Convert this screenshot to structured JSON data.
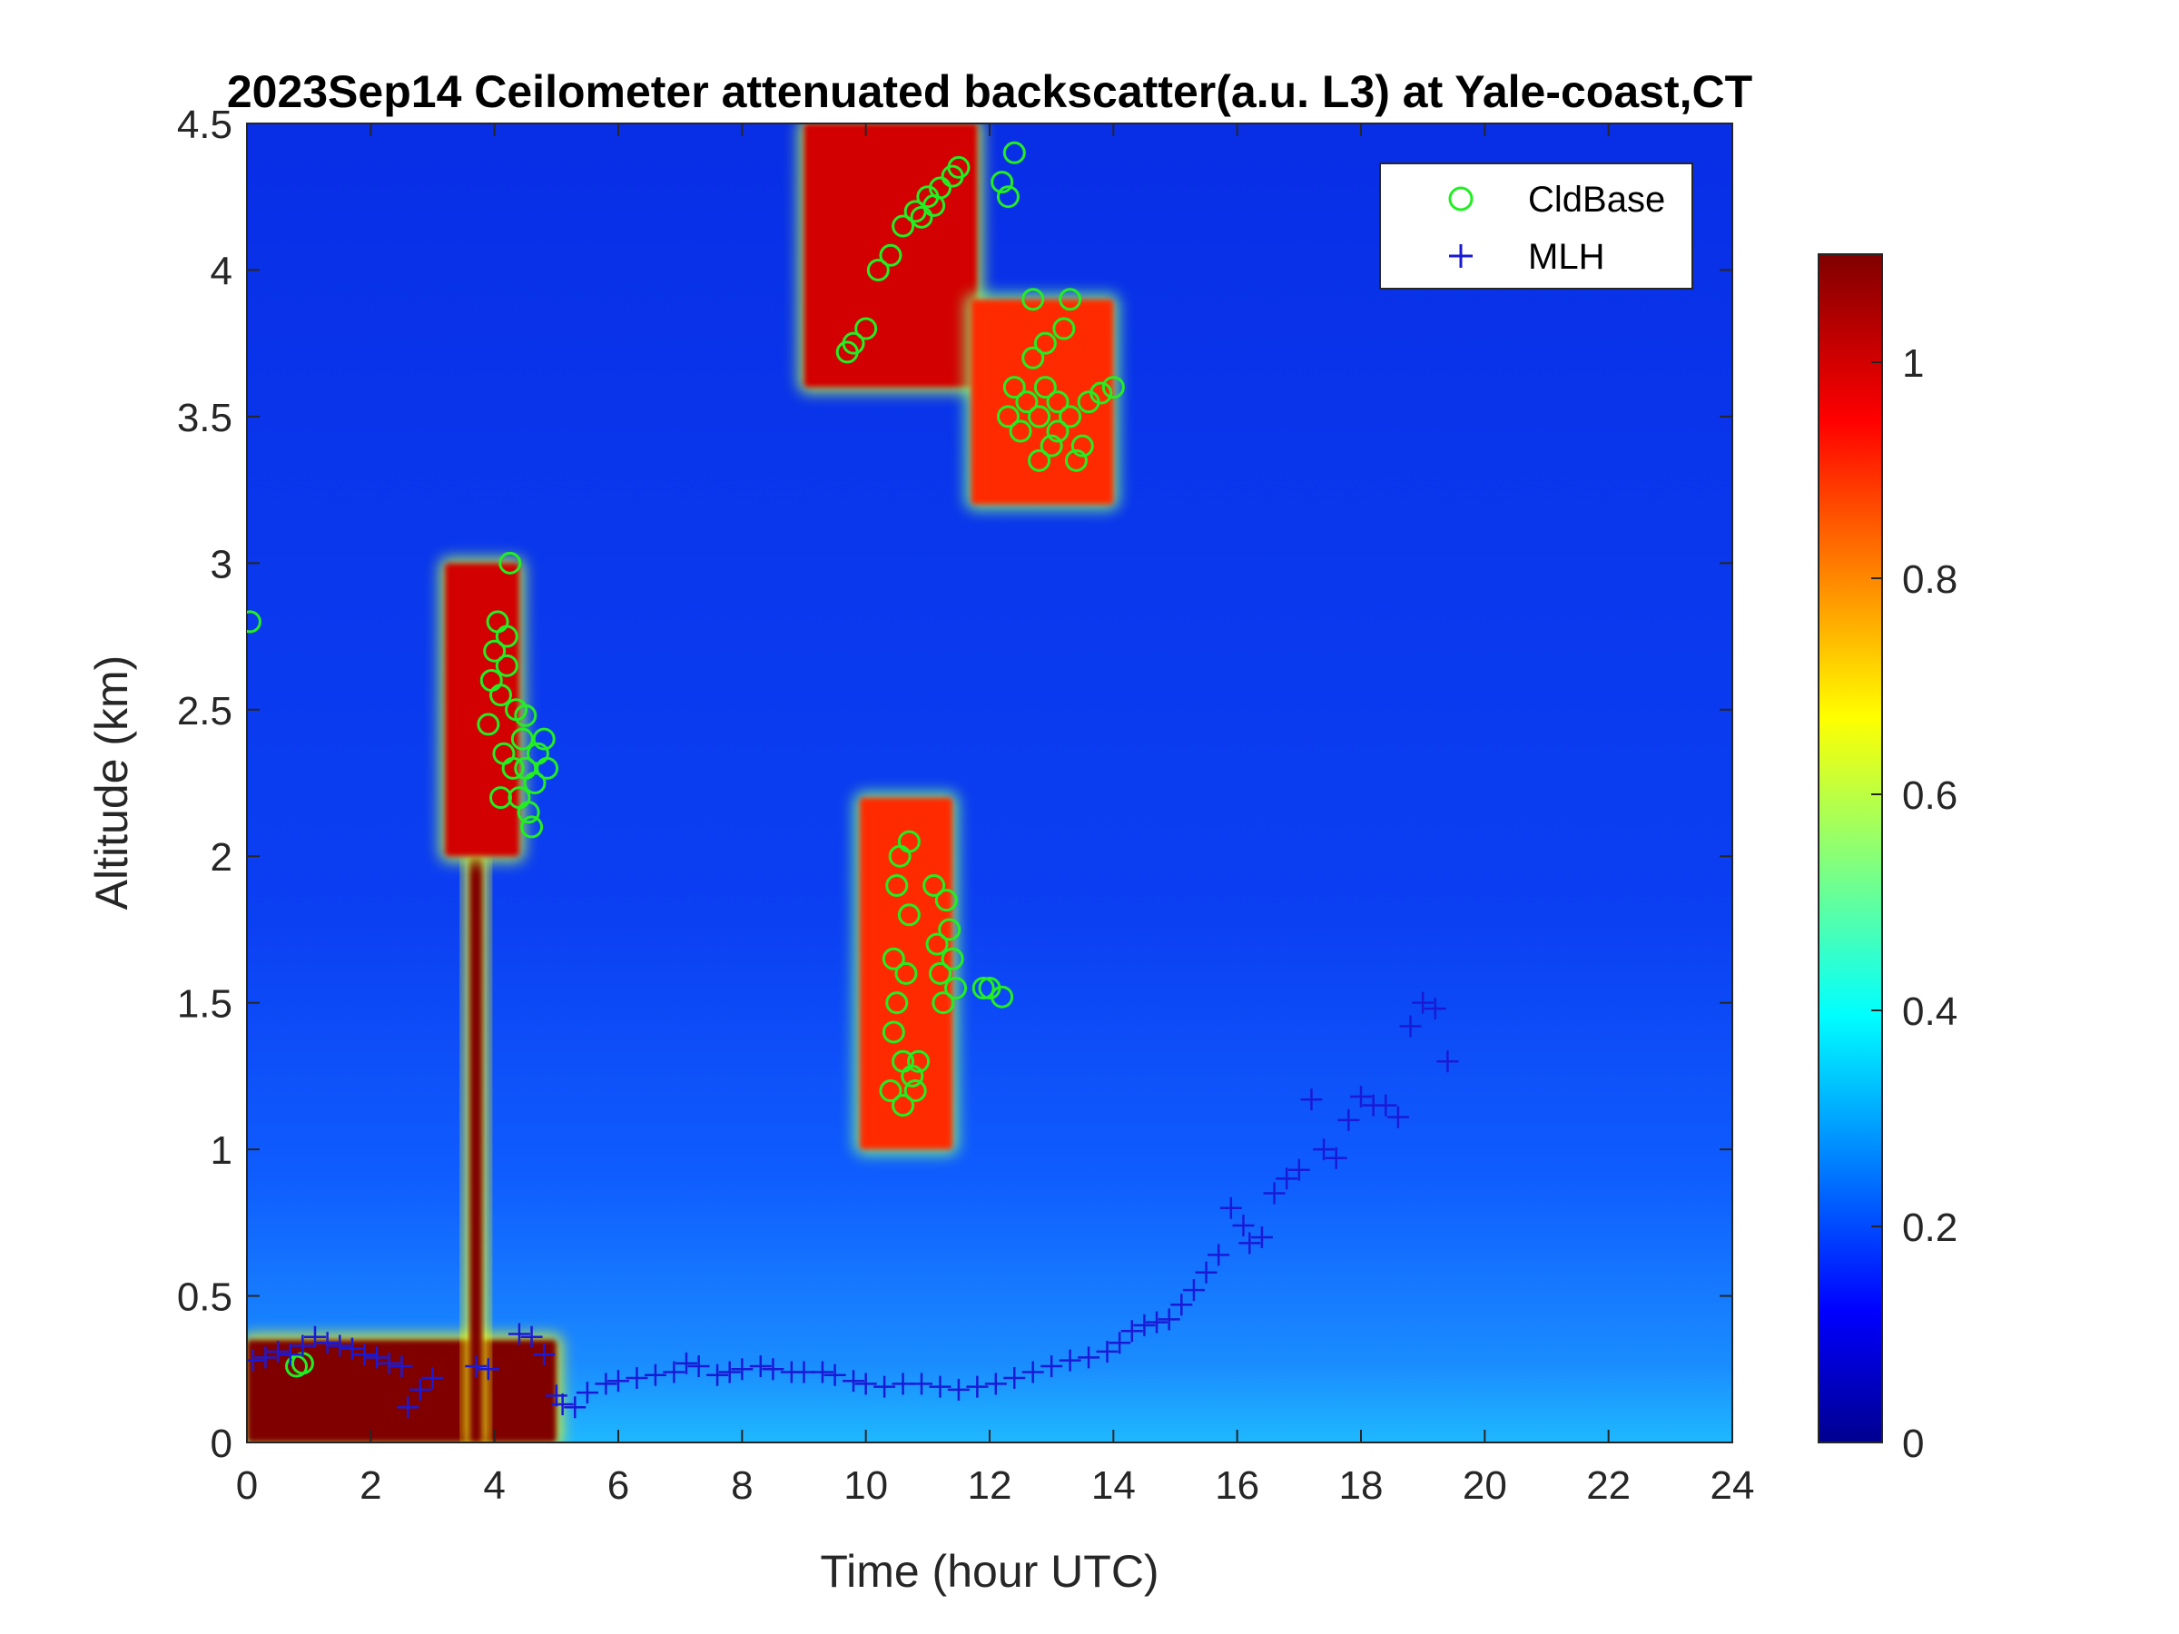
{
  "chart_data": {
    "type": "heatmap",
    "title": "2023Sep14 Ceilometer attenuated backscatter(a.u. L3) at Yale-coast,CT",
    "xlabel": "Time (hour UTC)",
    "ylabel": "Altitude (km)",
    "xlim": [
      0,
      24
    ],
    "ylim": [
      0,
      4.5
    ],
    "xticks": [
      "0",
      "2",
      "4",
      "6",
      "8",
      "10",
      "12",
      "14",
      "16",
      "18",
      "20",
      "22",
      "24"
    ],
    "yticks": [
      "0",
      "0.5",
      "1",
      "1.5",
      "2",
      "2.5",
      "3",
      "3.5",
      "4",
      "4.5"
    ],
    "colorbar": {
      "range": [
        0,
        1.1
      ],
      "ticks": [
        "0",
        "0.2",
        "0.4",
        "0.6",
        "0.8",
        "1"
      ],
      "colormap": "jet"
    },
    "legend": {
      "position": "top-right",
      "entries": [
        {
          "label": "CldBase",
          "marker": "circle",
          "color": "#22ee22"
        },
        {
          "label": "MLH",
          "marker": "plus",
          "color": "#1a1ad6"
        }
      ]
    },
    "features": [
      {
        "name": "surface aerosol layer",
        "t": [
          0,
          5
        ],
        "z": [
          0,
          0.35
        ],
        "value": 1.1
      },
      {
        "name": "plume column",
        "t": [
          3.6,
          3.8
        ],
        "z": [
          0,
          2.0
        ],
        "value": 1.1
      },
      {
        "name": "mid-level cloud",
        "t": [
          3.2,
          4.4
        ],
        "z": [
          2.0,
          3.0
        ],
        "value": 1.0
      },
      {
        "name": "high cloud arc",
        "t": [
          9.0,
          11.8
        ],
        "z": [
          3.6,
          4.5
        ],
        "value": 1.0
      },
      {
        "name": "high cloud",
        "t": [
          11.7,
          14.0
        ],
        "z": [
          3.2,
          3.9
        ],
        "value": 0.9
      },
      {
        "name": "low cloud",
        "t": [
          9.9,
          11.4
        ],
        "z": [
          1.0,
          2.2
        ],
        "value": 0.9
      }
    ],
    "series": [
      {
        "name": "CldBase",
        "points": [
          [
            0.05,
            2.8
          ],
          [
            0.8,
            0.26
          ],
          [
            0.9,
            0.27
          ],
          [
            3.9,
            2.45
          ],
          [
            3.95,
            2.6
          ],
          [
            4.0,
            2.7
          ],
          [
            4.05,
            2.8
          ],
          [
            4.1,
            2.55
          ],
          [
            4.15,
            2.35
          ],
          [
            4.2,
            2.75
          ],
          [
            4.25,
            3.0
          ],
          [
            4.3,
            2.3
          ],
          [
            4.35,
            2.5
          ],
          [
            4.4,
            2.2
          ],
          [
            4.45,
            2.4
          ],
          [
            4.5,
            2.3
          ],
          [
            4.55,
            2.15
          ],
          [
            4.6,
            2.1
          ],
          [
            4.65,
            2.25
          ],
          [
            4.7,
            2.35
          ],
          [
            4.8,
            2.4
          ],
          [
            4.85,
            2.3
          ],
          [
            4.2,
            2.65
          ],
          [
            4.1,
            2.2
          ],
          [
            4.5,
            2.48
          ],
          [
            9.7,
            3.72
          ],
          [
            9.8,
            3.75
          ],
          [
            10.0,
            3.8
          ],
          [
            10.2,
            4.0
          ],
          [
            10.4,
            4.05
          ],
          [
            10.6,
            4.15
          ],
          [
            10.8,
            4.2
          ],
          [
            11.0,
            4.25
          ],
          [
            11.2,
            4.28
          ],
          [
            11.4,
            4.32
          ],
          [
            11.5,
            4.35
          ],
          [
            10.9,
            4.18
          ],
          [
            11.1,
            4.22
          ],
          [
            12.2,
            4.3
          ],
          [
            12.3,
            4.25
          ],
          [
            12.4,
            4.4
          ],
          [
            12.3,
            3.5
          ],
          [
            12.4,
            3.6
          ],
          [
            12.5,
            3.45
          ],
          [
            12.6,
            3.55
          ],
          [
            12.7,
            3.7
          ],
          [
            12.8,
            3.5
          ],
          [
            12.9,
            3.6
          ],
          [
            13.0,
            3.4
          ],
          [
            13.1,
            3.55
          ],
          [
            13.2,
            3.8
          ],
          [
            13.3,
            3.5
          ],
          [
            13.4,
            3.35
          ],
          [
            13.5,
            3.4
          ],
          [
            13.6,
            3.55
          ],
          [
            13.8,
            3.58
          ],
          [
            14.0,
            3.6
          ],
          [
            12.7,
            3.9
          ],
          [
            13.3,
            3.9
          ],
          [
            12.9,
            3.75
          ],
          [
            12.8,
            3.35
          ],
          [
            13.1,
            3.45
          ],
          [
            10.4,
            1.2
          ],
          [
            10.45,
            1.4
          ],
          [
            10.5,
            1.9
          ],
          [
            10.55,
            2.0
          ],
          [
            10.6,
            1.3
          ],
          [
            10.65,
            1.6
          ],
          [
            10.7,
            1.8
          ],
          [
            10.75,
            1.25
          ],
          [
            10.8,
            1.2
          ],
          [
            10.85,
            1.3
          ],
          [
            10.5,
            1.5
          ],
          [
            10.6,
            1.15
          ],
          [
            10.7,
            2.05
          ],
          [
            10.45,
            1.65
          ],
          [
            11.1,
            1.9
          ],
          [
            11.15,
            1.7
          ],
          [
            11.2,
            1.6
          ],
          [
            11.25,
            1.5
          ],
          [
            11.3,
            1.85
          ],
          [
            11.35,
            1.75
          ],
          [
            11.4,
            1.65
          ],
          [
            11.45,
            1.55
          ],
          [
            11.9,
            1.55
          ],
          [
            12.0,
            1.55
          ],
          [
            12.2,
            1.52
          ]
        ]
      },
      {
        "name": "MLH",
        "points": [
          [
            0.1,
            0.28
          ],
          [
            0.3,
            0.29
          ],
          [
            0.5,
            0.31
          ],
          [
            0.7,
            0.3
          ],
          [
            0.9,
            0.33
          ],
          [
            1.1,
            0.36
          ],
          [
            1.3,
            0.34
          ],
          [
            1.5,
            0.33
          ],
          [
            1.7,
            0.32
          ],
          [
            1.9,
            0.3
          ],
          [
            2.1,
            0.29
          ],
          [
            2.3,
            0.27
          ],
          [
            2.5,
            0.26
          ],
          [
            2.6,
            0.12
          ],
          [
            2.8,
            0.18
          ],
          [
            3.0,
            0.22
          ],
          [
            3.7,
            0.26
          ],
          [
            3.9,
            0.25
          ],
          [
            4.4,
            0.37
          ],
          [
            4.6,
            0.36
          ],
          [
            4.8,
            0.3
          ],
          [
            5.0,
            0.16
          ],
          [
            5.1,
            0.13
          ],
          [
            5.3,
            0.12
          ],
          [
            5.5,
            0.17
          ],
          [
            5.8,
            0.2
          ],
          [
            6.0,
            0.21
          ],
          [
            6.3,
            0.22
          ],
          [
            6.6,
            0.23
          ],
          [
            6.9,
            0.24
          ],
          [
            7.1,
            0.27
          ],
          [
            7.3,
            0.26
          ],
          [
            7.6,
            0.23
          ],
          [
            7.8,
            0.24
          ],
          [
            8.0,
            0.25
          ],
          [
            8.3,
            0.26
          ],
          [
            8.5,
            0.25
          ],
          [
            8.8,
            0.24
          ],
          [
            9.0,
            0.24
          ],
          [
            9.3,
            0.24
          ],
          [
            9.5,
            0.23
          ],
          [
            9.8,
            0.21
          ],
          [
            10.0,
            0.2
          ],
          [
            10.3,
            0.19
          ],
          [
            10.6,
            0.2
          ],
          [
            10.9,
            0.2
          ],
          [
            11.2,
            0.19
          ],
          [
            11.5,
            0.18
          ],
          [
            11.8,
            0.19
          ],
          [
            12.1,
            0.2
          ],
          [
            12.4,
            0.22
          ],
          [
            12.7,
            0.24
          ],
          [
            13.0,
            0.26
          ],
          [
            13.3,
            0.28
          ],
          [
            13.6,
            0.29
          ],
          [
            13.9,
            0.31
          ],
          [
            14.1,
            0.34
          ],
          [
            14.3,
            0.38
          ],
          [
            14.5,
            0.4
          ],
          [
            14.7,
            0.41
          ],
          [
            14.9,
            0.42
          ],
          [
            15.1,
            0.47
          ],
          [
            15.3,
            0.52
          ],
          [
            15.5,
            0.58
          ],
          [
            15.7,
            0.64
          ],
          [
            15.9,
            0.8
          ],
          [
            16.1,
            0.74
          ],
          [
            16.2,
            0.68
          ],
          [
            16.4,
            0.7
          ],
          [
            16.6,
            0.85
          ],
          [
            16.8,
            0.9
          ],
          [
            17.0,
            0.93
          ],
          [
            17.2,
            1.17
          ],
          [
            17.4,
            1.0
          ],
          [
            17.6,
            0.97
          ],
          [
            17.8,
            1.1
          ],
          [
            18.0,
            1.18
          ],
          [
            18.2,
            1.15
          ],
          [
            18.4,
            1.15
          ],
          [
            18.6,
            1.11
          ],
          [
            18.8,
            1.42
          ],
          [
            19.0,
            1.5
          ],
          [
            19.2,
            1.48
          ],
          [
            19.4,
            1.3
          ]
        ]
      }
    ]
  }
}
